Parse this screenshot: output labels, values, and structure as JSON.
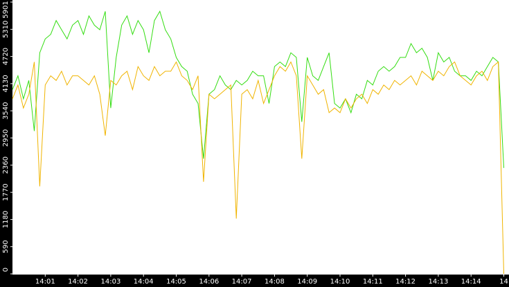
{
  "chart_data": {
    "type": "line",
    "categories": [
      null,
      null,
      null,
      null,
      null,
      null,
      "14:01",
      null,
      null,
      null,
      null,
      null,
      "14:02",
      null,
      null,
      null,
      null,
      null,
      "14:03",
      null,
      null,
      null,
      null,
      null,
      "14:04",
      null,
      null,
      null,
      null,
      null,
      "14:05",
      null,
      null,
      null,
      null,
      null,
      "14:06",
      null,
      null,
      null,
      null,
      null,
      "14:07",
      null,
      null,
      null,
      null,
      null,
      "14:08",
      null,
      null,
      null,
      null,
      null,
      "14:09",
      null,
      null,
      null,
      null,
      null,
      "14:10",
      null,
      null,
      null,
      null,
      null,
      "14:11",
      null,
      null,
      null,
      null,
      null,
      "14:12",
      null,
      null,
      null,
      null,
      null,
      "14:13",
      null,
      null,
      null,
      null,
      null,
      "14:14",
      null,
      null,
      null,
      null,
      null,
      "14"
    ],
    "series": [
      {
        "color": "#33dd11",
        "values": [
          4000,
          4300,
          3800,
          4200,
          3100,
          4800,
          5100,
          5200,
          5500,
          5300,
          5100,
          5400,
          5500,
          5200,
          5600,
          5400,
          5300,
          5700,
          3600,
          4700,
          5400,
          5600,
          5200,
          5500,
          5300,
          4800,
          5500,
          5700,
          5300,
          5100,
          4700,
          4500,
          4400,
          3900,
          3700,
          2500,
          3900,
          4000,
          4300,
          4100,
          4000,
          4200,
          4100,
          4200,
          4400,
          4300,
          4300,
          3700,
          4500,
          4600,
          4500,
          4800,
          4700,
          3300,
          4700,
          4300,
          4200,
          4500,
          4800,
          3700,
          3600,
          3800,
          3500,
          3900,
          3800,
          4200,
          4100,
          4400,
          4500,
          4400,
          4500,
          4700,
          4700,
          5000,
          4800,
          4900,
          4700,
          4200,
          4800,
          4600,
          4700,
          4400,
          4300,
          4300,
          4200,
          4400,
          4300,
          4500,
          4700,
          4600,
          2300
        ]
      },
      {
        "color": "#f0b400",
        "values": [
          3800,
          4100,
          3600,
          3900,
          4600,
          1900,
          4100,
          4300,
          4200,
          4400,
          4100,
          4300,
          4300,
          4200,
          4100,
          4300,
          3900,
          3000,
          4200,
          4100,
          4300,
          4400,
          4000,
          4500,
          4300,
          4200,
          4500,
          4300,
          4400,
          4400,
          4600,
          4300,
          4200,
          4000,
          4300,
          2000,
          3900,
          3800,
          3900,
          4000,
          4100,
          1200,
          3900,
          4000,
          3800,
          4200,
          3700,
          4000,
          4300,
          4500,
          4400,
          4600,
          4300,
          2500,
          4300,
          4100,
          3900,
          4000,
          3500,
          3600,
          3500,
          3800,
          3600,
          3800,
          3900,
          3700,
          4000,
          3900,
          4100,
          4000,
          4200,
          4100,
          4200,
          4300,
          4100,
          4400,
          4300,
          4200,
          4400,
          4300,
          4500,
          4600,
          4300,
          4200,
          4100,
          4300,
          4400,
          4200,
          4500,
          4600,
          0
        ]
      }
    ],
    "ylim": [
      0,
      5901
    ],
    "yticks": [
      0,
      590,
      1180,
      1770,
      2360,
      2950,
      3540,
      4130,
      4720,
      5310,
      5901
    ]
  }
}
